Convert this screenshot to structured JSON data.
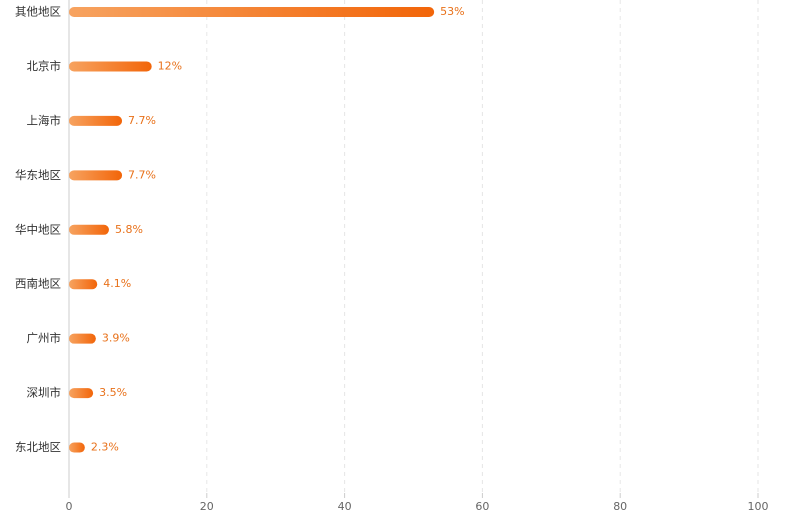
{
  "chart_data": {
    "type": "bar",
    "orientation": "horizontal",
    "categories": [
      "其他地区",
      "北京市",
      "上海市",
      "华东地区",
      "华中地区",
      "西南地区",
      "广州市",
      "深圳市",
      "东北地区"
    ],
    "values": [
      53,
      12,
      7.7,
      7.7,
      5.8,
      4.1,
      3.9,
      3.5,
      2.3
    ],
    "value_labels": [
      "53%",
      "12%",
      "7.7%",
      "7.7%",
      "5.8%",
      "4.1%",
      "3.9%",
      "3.5%",
      "2.3%"
    ],
    "gradient": [
      "#f7a360",
      "#f26509"
    ],
    "xlim": [
      0,
      100
    ],
    "xticks": [
      0,
      20,
      40,
      60,
      80,
      100
    ],
    "grid": true
  }
}
